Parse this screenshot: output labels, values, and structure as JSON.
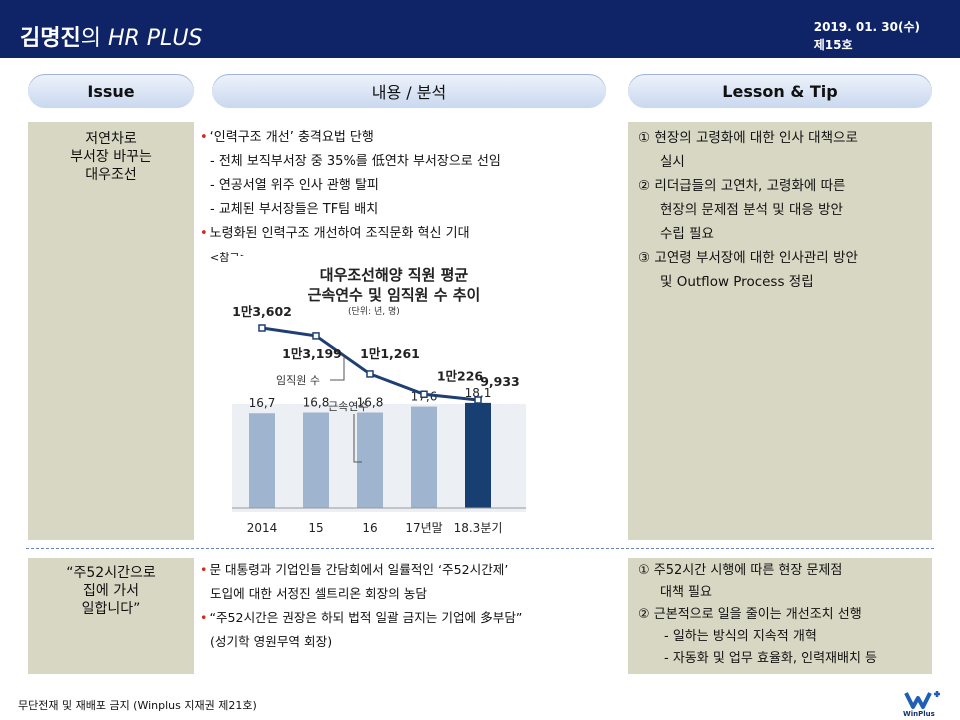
{
  "header": {
    "title_bold": "김명진",
    "title_mid": "의 ",
    "title_ital": "HR PLUS",
    "date": "2019. 01. 30(수)",
    "issue_no": "제15호"
  },
  "columns": {
    "issue": "Issue",
    "content": "내용 / 분석",
    "lesson": "Lesson & Tip"
  },
  "section1": {
    "issue_lines": [
      "저연차로",
      "부서장 바꾸는",
      "대우조선"
    ],
    "content_lines": [
      {
        "type": "bullet",
        "text": "‘인력구조 개선’ 충격요법 단행"
      },
      {
        "type": "sub",
        "text": "- 전체 보직부서장 중 35%를 低연차 부서장으로 선임"
      },
      {
        "type": "sub",
        "text": "- 연공서열 위주 인사 관행 탈피"
      },
      {
        "type": "sub",
        "text": "- 교체된 부서장들은 TF팀 배치"
      },
      {
        "type": "bullet",
        "text": "노령화된 인력구조 개선하여 조직문화 혁신 기대"
      }
    ],
    "ref_label": "<참고>",
    "lesson_lines": [
      "① 현장의 고령화에 대한 인사 대책으로",
      "    실시",
      "② 리더급들의 고연차, 고령화에 따른",
      "    현장의 문제점 분석 및 대응 방안",
      "    수립 필요",
      "③ 고연령 부서장에 대한 인사관리 방안",
      "    및 Outflow Process 정립"
    ]
  },
  "section2": {
    "issue_lines": [
      "“주52시간으로",
      "집에 가서",
      "일합니다”"
    ],
    "content_lines": [
      {
        "type": "bullet",
        "text": "문 대통령과 기업인들 간담회에서 일률적인 ‘주52시간제’"
      },
      {
        "type": "sub",
        "text": "도입에 대한 서정진 셀트리온 회장의 농담"
      },
      {
        "type": "bullet",
        "text": "“주52시간은 권장은 하되 법적 일괄 금지는 기업에 多부담”"
      },
      {
        "type": "sub",
        "text": "(성기학 영원무역 회장)"
      }
    ],
    "lesson_lines": [
      "① 주52시간 시행에 따른 현장 문제점",
      "    대책 필요",
      "② 근본적으로 일을 줄이는 개선조치 선행",
      "      - 일하는 방식의 지속적 개혁",
      "      - 자동화 및 업무 효율화, 인력재배치 등"
    ]
  },
  "chart_data": {
    "type": "bar+line",
    "title": "대우조선해양 직원 평균",
    "subtitle": "근속연수 및 임직원 수 추이",
    "unit_note": "(단위: 년, 명)",
    "categories": [
      "2014",
      "15",
      "16",
      "17년말",
      "18.3분기"
    ],
    "series": [
      {
        "name": "임직원 수",
        "type": "line",
        "values": [
          13602,
          13199,
          11261,
          10226,
          9933
        ],
        "labels": [
          "1만3,602",
          "1만3,199",
          "1만1,261",
          "1만226",
          "9,933"
        ]
      },
      {
        "name": "근속연수",
        "type": "bar",
        "values": [
          16.7,
          16.8,
          16.8,
          17.6,
          18.1
        ],
        "labels": [
          "16,7",
          "16,8",
          "16,8",
          "17,6",
          "18,1"
        ]
      }
    ],
    "colors": {
      "bar": "#9fb4ce",
      "bar_last": "#183f72",
      "line": "#1f3f72"
    }
  },
  "footer": {
    "notice": "무단전재 및 재배포 금지 (Winplus 지재권 제21호)",
    "logo_text": "WinPlus"
  }
}
